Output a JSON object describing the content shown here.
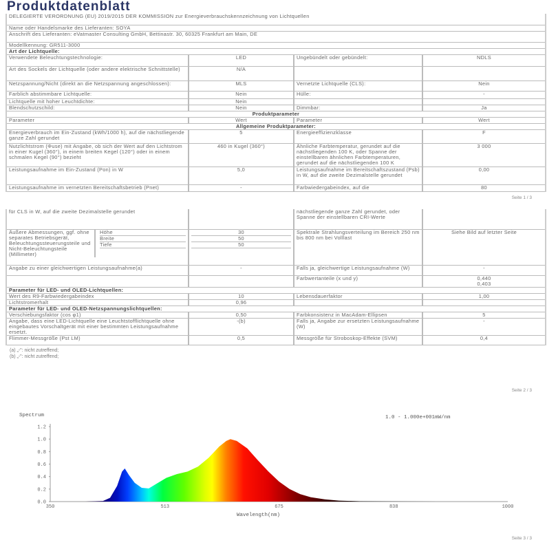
{
  "title": "Produktdatenblatt",
  "page1": {
    "rows": [
      {
        "type": "full",
        "text": "DELEGIERTE VERORDNUNG (EU) 2019/2015 DER KOMMISSION zur Energieverbrauchskennzeichnung von Lichtquellen"
      },
      {
        "type": "full",
        "text": "Name oder Handelsmarke des Lieferanten: SOYA"
      },
      {
        "type": "full",
        "text": "Anschrift des Lieferanten: eVatmaster Consulting GmbH, Bettinastr. 30, 60325 Frankfurt am Main, DE"
      },
      {
        "type": "full",
        "text": "Modellkennung: GR511-3000"
      },
      {
        "type": "full",
        "text": "Art der Lichtquelle:",
        "bold": true
      },
      {
        "type": "quad",
        "cells": [
          "Verwendete Beleuchtungstechnologie:",
          "LED",
          "Ungebündelt oder gebündelt:",
          "NDLS"
        ]
      },
      {
        "type": "quad",
        "cells": [
          "Art des Sockels der Lichtquelle (oder andere elektrische Schnittstelle)",
          "N/A",
          "",
          ""
        ]
      },
      {
        "type": "quad",
        "cells": [
          "Netzspannung/Nicht (direkt an die Netzspannung angeschlossen):",
          "MLS",
          "Vernetzte Lichtquelle (CLS):",
          "Nein"
        ]
      },
      {
        "type": "quad",
        "cells": [
          "Farblich abstimmbare Lichtquelle:",
          "Nein",
          "Hülle:",
          "-"
        ]
      },
      {
        "type": "quad",
        "cells": [
          "Lichtquelle mit hoher Leuchtdichte:",
          "Nein",
          "",
          ""
        ]
      },
      {
        "type": "quad",
        "cells": [
          "Blendschutzschild:",
          "Nein",
          "Dimmbar:",
          "Ja"
        ]
      },
      {
        "type": "full",
        "text": "Produktparameter",
        "bold": true,
        "center": true
      },
      {
        "type": "quad",
        "cells": [
          "Parameter",
          "Wert",
          "Parameter",
          "Wert"
        ]
      },
      {
        "type": "full",
        "text": "Allgemeine Produktparameter:",
        "bold": true,
        "center": true
      },
      {
        "type": "quad",
        "cells": [
          "Energieverbrauch im Ein-Zustand (kWh/1000 h), auf die nächstliegende ganze Zahl gerundet",
          "5",
          "Energieeffizienzklasse",
          "F"
        ]
      },
      {
        "type": "quad",
        "cells": [
          "Nutzlichtstrom (Φuse) mit Angabe, ob sich der Wert auf den Lichtstrom in einer Kugel (360°), in einem breiten Kegel (120°) oder in einem schmalen Kegel (90°) bezieht",
          "460 in Kugel (360°)",
          "Ähnliche Farbtemperatur, gerundet auf die nächstliegenden 100 K, oder Spanne der einstellbaren ähnlichen Farbtemperaturen, gerundet auf die nächstliegenden 100 K",
          "3 000"
        ]
      },
      {
        "type": "quad",
        "cells": [
          "Leistungsaufnahme im Ein-Zustand (Pon) in W",
          "5,0",
          "Leistungsaufnahme im Bereitschaftszustand (Psb) in W, auf die zweite Dezimalstelle gerundet",
          "0,00"
        ]
      },
      {
        "type": "quad",
        "cells": [
          "Leistungsaufnahme im vernetzten Bereitschaftsbetrieb (Pnet)",
          "-",
          "Farbwiedergabeindex, auf die",
          "80"
        ]
      }
    ],
    "footer": "Seite 1 / 3"
  },
  "page2": {
    "rows": [
      {
        "type": "quad",
        "cells": [
          "für CLS in W, auf die zweite Dezimalstelle gerundet",
          "",
          "nächstliegende ganze Zahl gerundet, oder Spanne der einstellbaren CRI-Werte",
          ""
        ]
      },
      {
        "type": "dims",
        "text": "Äußere Abmessungen, ggf. ohne separates Betriebsgerät, Beleuchtungssteuerungsteile und Nicht-Beleuchtungsteile (Millimeter)",
        "dims": [
          {
            "label": "Höhe",
            "value": "30"
          },
          {
            "label": "Breite",
            "value": "50"
          },
          {
            "label": "Tiefe",
            "value": "50"
          }
        ],
        "p2": "Spektrale Strahlungsverteilung im Bereich 250 nm bis 800 nm bei Volllast",
        "v2": "Siehe Bild auf letzter Seite"
      },
      {
        "type": "quad",
        "cells": [
          "Angabe zu einer gleichwertigen Leistungsaufnahme(a)",
          "-",
          "Falls ja, gleichwertige Leistungsaufnahme (W)",
          "-"
        ]
      },
      {
        "type": "quad",
        "cells": [
          "",
          "",
          "Farbwertanteile (x und y)",
          "0,440\n0,403"
        ]
      },
      {
        "type": "full",
        "text": "Parameter für LED- und OLED-Lichtquellen:",
        "bold": true
      },
      {
        "type": "quad",
        "cells": [
          "Wert des R9-Farbwiedergabeindex",
          "10",
          "Lebensdauerfaktor",
          "1,00"
        ]
      },
      {
        "type": "quad",
        "cells": [
          "Lichtstromerhalt",
          "0,96",
          "",
          ""
        ]
      },
      {
        "type": "full",
        "text": "Parameter für LED- und OLED-Netzspannungslichtquellen:",
        "bold": true
      },
      {
        "type": "quad",
        "cells": [
          "Verschiebungsfaktor (cos φ1)",
          "0,50",
          "Farbkonsistenz in MacAdam-Ellipsen",
          "5"
        ]
      },
      {
        "type": "quad",
        "cells": [
          "Angabe, dass eine LED-Lichtquelle eine Leuchtstofflichtquelle ohne eingebautes Vorschaltgerät mit einer bestimmten Leistungsaufnahme ersetzt.",
          "-(b)",
          "Falls ja, Angabe zur ersetzten Leistungsaufnahme (W)",
          "-"
        ]
      },
      {
        "type": "quad",
        "cells": [
          "Flimmer-Messgröße (Pst LM)",
          "0,5",
          "Messgröße für Stroboskop-Effekte (SVM)",
          "0,4"
        ]
      }
    ],
    "footnotes": [
      "(a) „-\": nicht zutreffend;",
      "(b) „-\": nicht zutreffend;"
    ],
    "footer": "Seite 2 / 3"
  },
  "page3": {
    "footer": "Seite 3 / 3"
  },
  "chart_data": {
    "type": "area",
    "title": "Spectrum",
    "legend": "1.0 - 1.000e+001mW/nm",
    "xlabel": "Wavelength(nm)",
    "ylabel": "Spectrum",
    "xlim": [
      350,
      1000
    ],
    "ylim": [
      0,
      1.2
    ],
    "xticks": [
      350,
      513,
      675,
      838,
      1000
    ],
    "yticks": [
      "0.0",
      "0.2",
      "0.4",
      "0.6",
      "0.8",
      "1.0",
      "1.2"
    ],
    "x": [
      350,
      400,
      425,
      435,
      445,
      452,
      456,
      462,
      470,
      480,
      490,
      500,
      515,
      530,
      545,
      560,
      575,
      590,
      600,
      606,
      615,
      630,
      645,
      660,
      675,
      690,
      705,
      720,
      740,
      760,
      790,
      830,
      900,
      1000
    ],
    "y": [
      0.0,
      0.0,
      0.01,
      0.06,
      0.25,
      0.48,
      0.53,
      0.42,
      0.3,
      0.22,
      0.21,
      0.28,
      0.38,
      0.44,
      0.48,
      0.56,
      0.7,
      0.88,
      0.97,
      1.0,
      0.97,
      0.85,
      0.66,
      0.48,
      0.32,
      0.2,
      0.12,
      0.07,
      0.035,
      0.015,
      0.006,
      0.002,
      0.0,
      0.0
    ]
  }
}
